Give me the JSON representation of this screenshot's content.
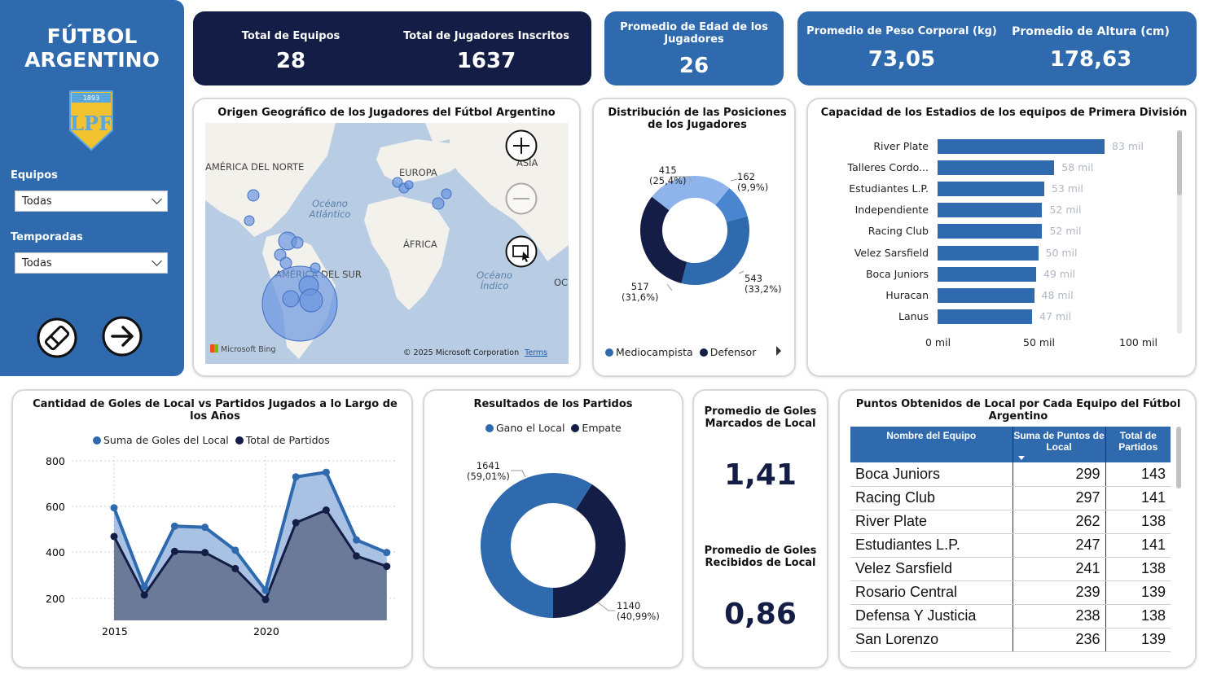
{
  "sidebar": {
    "title_line1": "FÚTBOL",
    "title_line2": "ARGENTINO",
    "logo_top": "1893",
    "logo_text": "LPF",
    "equipos_label": "Equipos",
    "equipos_value": "Todas",
    "temporadas_label": "Temporadas",
    "temporadas_value": "Todas"
  },
  "kpis": {
    "equipos_label": "Total de Equipos",
    "equipos_value": "28",
    "jugadores_label": "Total de Jugadores Inscritos",
    "jugadores_value": "1637",
    "edad_label": "Promedio de Edad de los Jugadores",
    "edad_value": "26",
    "peso_label": "Promedio de Peso Corporal (kg)",
    "peso_value": "73,05",
    "altura_label": "Promedio de Altura (cm)",
    "altura_value": "178,63"
  },
  "map": {
    "title": "Origen Geográfico de los Jugadores del Fútbol Argentino",
    "labels": {
      "north_america": "AMÉRICA DEL NORTE",
      "europe": "EUROPA",
      "asia": "ASIA",
      "atlantic": "Océano Atlántico",
      "africa": "ÁFRICA",
      "south_america": "AMÉRICA DEL SUR",
      "indian": "Océano Índico",
      "oc": "OC"
    },
    "bing": "Microsoft Bing",
    "copyright": "© 2025 Microsoft Corporation",
    "terms": "Terms"
  },
  "positions": {
    "title": "Distribución de las Posiciones de los Jugadores",
    "legend": [
      "Mediocampista",
      "Defensor"
    ],
    "labels": {
      "a_value": "415",
      "a_pct": "(25,4%)",
      "b_value": "162",
      "b_pct": "(9,9%)",
      "c_value": "543",
      "c_pct": "(33,2%)",
      "d_value": "517",
      "d_pct": "(31,6%)"
    },
    "colors": [
      "#8fb4ec",
      "#4a86d0",
      "#2e6aad",
      "#131d45"
    ]
  },
  "stadiums": {
    "title": "Capacidad de los Estadios de los equipos de Primera División",
    "axis": [
      "0 mil",
      "50 mil",
      "100 mil"
    ],
    "teams": [
      "River Plate",
      "Talleres Cordo...",
      "Estudiantes L.P.",
      "Independiente",
      "Racing Club",
      "Velez Sarsfield",
      "Boca Juniors",
      "Huracan",
      "Lanus"
    ],
    "labels": [
      "83 mil",
      "58 mil",
      "53 mil",
      "52 mil",
      "52 mil",
      "50 mil",
      "49 mil",
      "48 mil",
      "47 mil"
    ]
  },
  "goals_chart": {
    "title": "Cantidad de Goles de Local vs Partidos Jugados a lo Largo de los Años",
    "legend": [
      "Suma de Goles del Local",
      "Total de Partidos"
    ],
    "yticks": [
      "800",
      "600",
      "400",
      "200"
    ],
    "xticks": [
      "2015",
      "2020"
    ]
  },
  "results": {
    "title": "Resultados de los Partidos",
    "legend": [
      "Gano el Local",
      "Empate"
    ],
    "a_value": "1641",
    "a_pct": "(59,01%)",
    "b_value": "1140",
    "b_pct": "(40,99%)"
  },
  "metrics": {
    "marcados_label": "Promedio de Goles Marcados de Local",
    "marcados_value": "1,41",
    "recibidos_label": "Promedio de Goles Recibidos de Local",
    "recibidos_value": "0,86"
  },
  "points_table": {
    "title": "Puntos Obtenidos de Local por Cada Equipo del Fútbol Argentino",
    "headers": [
      "Nombre del Equipo",
      "Suma de Puntos de Local",
      "Total de Partidos"
    ],
    "rows": [
      [
        "Boca Juniors",
        "299",
        "143"
      ],
      [
        "Racing Club",
        "297",
        "141"
      ],
      [
        "River Plate",
        "262",
        "138"
      ],
      [
        "Estudiantes L.P.",
        "247",
        "141"
      ],
      [
        "Velez Sarsfield",
        "241",
        "138"
      ],
      [
        "Rosario Central",
        "239",
        "139"
      ],
      [
        "Defensa Y Justicia",
        "238",
        "138"
      ],
      [
        "San Lorenzo",
        "236",
        "139"
      ]
    ]
  },
  "chart_data": [
    {
      "type": "pie",
      "title": "Distribución de las Posiciones de los Jugadores",
      "values": [
        415,
        162,
        543,
        517
      ],
      "percent": [
        25.4,
        9.9,
        33.2,
        31.6
      ],
      "legend": [
        "Mediocampista",
        "Defensor"
      ]
    },
    {
      "type": "bar",
      "title": "Capacidad de los Estadios de los equipos de Primera División",
      "categories": [
        "River Plate",
        "Talleres Cordo...",
        "Estudiantes L.P.",
        "Independiente",
        "Racing Club",
        "Velez Sarsfield",
        "Boca Juniors",
        "Huracan",
        "Lanus"
      ],
      "values": [
        83,
        58,
        53,
        52,
        52,
        50,
        49,
        48,
        47
      ],
      "xlim": [
        0,
        100
      ]
    },
    {
      "type": "area",
      "title": "Cantidad de Goles de Local vs Partidos Jugados a lo Largo de los Años",
      "x": [
        2015,
        2016,
        2017,
        2018,
        2019,
        2020,
        2021,
        2022,
        2023,
        2024
      ],
      "series": [
        {
          "name": "Suma de Goles del Local",
          "values": [
            595,
            250,
            515,
            510,
            410,
            235,
            730,
            750,
            455,
            400
          ]
        },
        {
          "name": "Total de Partidos",
          "values": [
            470,
            215,
            405,
            400,
            330,
            195,
            530,
            585,
            385,
            340
          ]
        }
      ],
      "ylim": [
        130,
        800
      ]
    },
    {
      "type": "pie",
      "title": "Resultados de los Partidos",
      "values": [
        1641,
        1140
      ],
      "percent": [
        59.01,
        40.99
      ],
      "legend": [
        "Gano el Local",
        "Empate"
      ]
    }
  ]
}
